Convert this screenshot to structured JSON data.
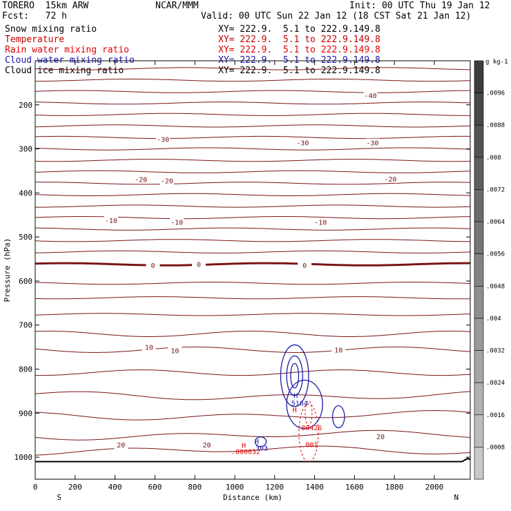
{
  "header": {
    "model": "TORERO  15km ARW",
    "org": "NCAR/MMM",
    "init": "Init: 00 UTC Thu 19 Jan 12",
    "fcst": "Fcst:   72 h",
    "valid": "Valid: 00 UTC Sun 22 Jan 12 (18 CST Sat 21 Jan 12)"
  },
  "fields": [
    {
      "name": "Snow mixing ratio",
      "xy": "XY= 222.9.  5.1 to 222.9.149.8",
      "color": "#000000"
    },
    {
      "name": "Temperature",
      "xy": "XY= 222.9.  5.1 to 222.9.149.8",
      "color": "#c00000"
    },
    {
      "name": "Rain water mixing ratio",
      "xy": "XY= 222.9.  5.1 to 222.9.149.8",
      "color": "#e00000"
    },
    {
      "name": "Cloud water mixing ratio",
      "xy": "XY= 222.9.  5.1 to 222.9.149.8",
      "color": "#1a1aa8"
    },
    {
      "name": "Cloud ice mixing ratio",
      "xy": "XY= 222.9.  5.1 to 222.9.149.8",
      "color": "#000000"
    }
  ],
  "chart_data": {
    "type": "contour",
    "xlabel": "Distance (km)",
    "ylabel": "Pressure (hPa)",
    "xlim": [
      0,
      2180
    ],
    "ylim": [
      1050,
      100
    ],
    "x_ticks": [
      0,
      200,
      400,
      600,
      800,
      1000,
      1200,
      1400,
      1600,
      1800,
      2000
    ],
    "y_ticks": [
      200,
      300,
      400,
      500,
      600,
      700,
      800,
      900,
      1000
    ],
    "x_end_labels": [
      "S",
      "N"
    ],
    "colorbar": {
      "unit": "g kg-1",
      "levels": [
        ".0096",
        ".0088",
        ".008",
        ".0072",
        ".0064",
        ".0056",
        ".0048",
        ".004",
        ".0032",
        ".0024",
        ".0016",
        ".0008"
      ]
    },
    "temperature_labels": [
      {
        "text": "-40",
        "x": 1680,
        "p": 178
      },
      {
        "text": "-30",
        "x": 640,
        "p": 278
      },
      {
        "text": "-30",
        "x": 1340,
        "p": 286
      },
      {
        "text": "-30",
        "x": 1690,
        "p": 286
      },
      {
        "text": "-20",
        "x": 530,
        "p": 369
      },
      {
        "text": "-20",
        "x": 660,
        "p": 372
      },
      {
        "text": "-20",
        "x": 1780,
        "p": 368
      },
      {
        "text": "-10",
        "x": 380,
        "p": 462
      },
      {
        "text": "-10",
        "x": 710,
        "p": 466
      },
      {
        "text": "-10",
        "x": 1430,
        "p": 466
      },
      {
        "text": "0",
        "x": 590,
        "p": 564
      },
      {
        "text": "0",
        "x": 820,
        "p": 562
      },
      {
        "text": "0",
        "x": 1350,
        "p": 564
      },
      {
        "text": "10",
        "x": 570,
        "p": 750
      },
      {
        "text": "10",
        "x": 700,
        "p": 758
      },
      {
        "text": "10",
        "x": 1520,
        "p": 756
      },
      {
        "text": "20",
        "x": 430,
        "p": 972
      },
      {
        "text": "20",
        "x": 860,
        "p": 972
      },
      {
        "text": "20",
        "x": 1730,
        "p": 953
      }
    ],
    "marks": [
      {
        "text": "H",
        "x": 1305,
        "p": 866,
        "color": "#1a1aa8"
      },
      {
        "text": "5164",
        "x": 1325,
        "p": 883,
        "color": "#1a1aa8"
      },
      {
        "text": "H",
        "x": 1300,
        "p": 898,
        "color": "#e00000"
      },
      {
        "text": ".00426",
        "x": 1375,
        "p": 939,
        "color": "#e00000"
      },
      {
        "text": ".001",
        "x": 1375,
        "p": 977,
        "color": "#e00000"
      },
      {
        "text": "H",
        "x": 1110,
        "p": 970,
        "color": "#1a1aa8"
      },
      {
        "text": "303",
        "x": 1135,
        "p": 985,
        "color": "#1a1aa8"
      },
      {
        "text": "H",
        "x": 1045,
        "p": 979,
        "color": "#e00000"
      },
      {
        "text": ".000032",
        "x": 1055,
        "p": 993,
        "color": "#e00000"
      }
    ]
  }
}
